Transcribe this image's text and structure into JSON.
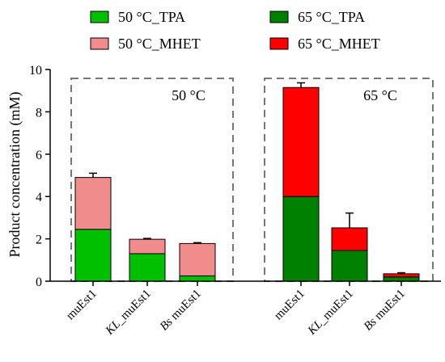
{
  "chart_data": {
    "type": "bar",
    "stacked": true,
    "ylabel": "Product concentration (mM)",
    "ylim": [
      0,
      10
    ],
    "yticks": [
      "0",
      "2",
      "4",
      "6",
      "8",
      "10"
    ],
    "legend": {
      "placement": "top",
      "entries": [
        {
          "label": "50 °C_TPA",
          "color": "#00c000",
          "order": 1
        },
        {
          "label": "50 °C_MHET",
          "color": "#f08c8c",
          "order": 2
        },
        {
          "label": "65 °C_TPA",
          "color": "#008000",
          "order": 3
        },
        {
          "label": "65 °C_MHET",
          "color": "#ff0000",
          "order": 4
        }
      ]
    },
    "groups": [
      {
        "label": "50 °C",
        "categories": [
          0,
          1,
          2
        ]
      },
      {
        "label": "65 °C",
        "categories": [
          3,
          4,
          5
        ]
      }
    ],
    "categories": [
      {
        "prefix": "",
        "name": "muEst1"
      },
      {
        "prefix": "KL",
        "name": "_muEst1"
      },
      {
        "prefix": "Bs",
        "name": " muEst1"
      },
      {
        "prefix": "",
        "name": "muEst1"
      },
      {
        "prefix": "KL",
        "name": "_muEst1"
      },
      {
        "prefix": "Bs",
        "name": " muEst1"
      }
    ],
    "series": [
      {
        "name": "TPA",
        "colors": [
          "#00c000",
          "#00c000",
          "#00c000",
          "#008000",
          "#008000",
          "#008000"
        ],
        "values": [
          2.45,
          1.3,
          0.25,
          4.0,
          1.45,
          0.2
        ],
        "errors": [
          0.35,
          0.07,
          0.05,
          0.12,
          0.6,
          0.04
        ]
      },
      {
        "name": "MHET",
        "colors": [
          "#f08c8c",
          "#f08c8c",
          "#f08c8c",
          "#ff0000",
          "#ff0000",
          "#ff0000"
        ],
        "values": [
          2.45,
          0.68,
          1.53,
          5.15,
          1.07,
          0.15
        ],
        "errors": [
          0.2,
          0.04,
          0.04,
          0.22,
          0.7,
          0.05
        ]
      }
    ]
  }
}
